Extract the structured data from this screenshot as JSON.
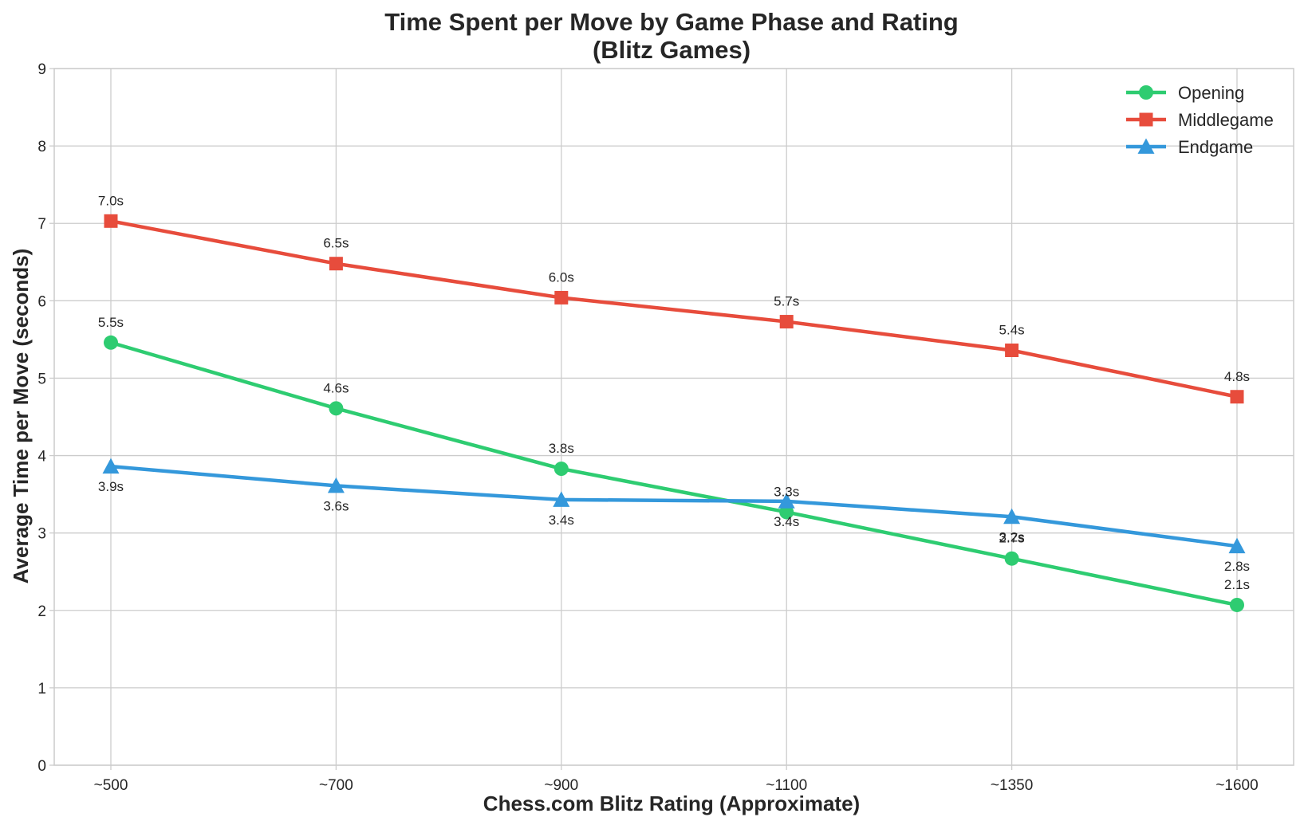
{
  "chart_data": {
    "type": "line",
    "title": [
      "Time Spent per Move by Game Phase and Rating",
      "(Blitz Games)"
    ],
    "xlabel": "Chess.com Blitz Rating (Approximate)",
    "ylabel": "Average Time per Move (seconds)",
    "categories": [
      "~500",
      "~700",
      "~900",
      "~1100",
      "~1350",
      "~1600"
    ],
    "ylim": [
      0,
      9
    ],
    "yticks": [
      0,
      1,
      2,
      3,
      4,
      5,
      6,
      7,
      8,
      9
    ],
    "grid": true,
    "legend_position": "top-right",
    "series": [
      {
        "name": "Opening",
        "color": "#2ecc71",
        "marker": "circle",
        "label_position": "above",
        "values": [
          5.46,
          4.61,
          3.83,
          3.27,
          2.67,
          2.07
        ],
        "labels": [
          "5.5s",
          "4.6s",
          "3.8s",
          "3.3s",
          "2.7s",
          "2.1s"
        ]
      },
      {
        "name": "Middlegame",
        "color": "#e74c3c",
        "marker": "square",
        "label_position": "above",
        "values": [
          7.03,
          6.48,
          6.04,
          5.73,
          5.36,
          4.76
        ],
        "labels": [
          "7.0s",
          "6.5s",
          "6.0s",
          "5.7s",
          "5.4s",
          "4.8s"
        ]
      },
      {
        "name": "Endgame",
        "color": "#3498db",
        "marker": "triangle",
        "label_position": "below",
        "values": [
          3.86,
          3.61,
          3.43,
          3.41,
          3.21,
          2.83
        ],
        "labels": [
          "3.9s",
          "3.6s",
          "3.4s",
          "3.4s",
          "3.2s",
          "2.8s"
        ]
      }
    ]
  }
}
